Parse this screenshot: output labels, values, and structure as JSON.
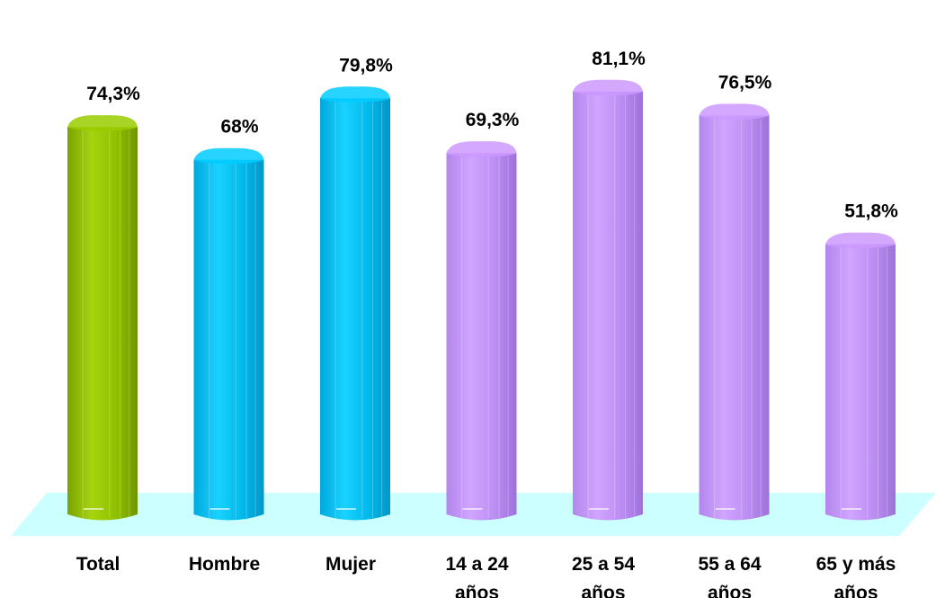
{
  "chart_data": {
    "type": "bar",
    "title": "",
    "xlabel": "",
    "ylabel": "",
    "ylim": [
      0,
      100
    ],
    "grid": false,
    "legend": "none",
    "categories": [
      [
        "Total"
      ],
      [
        "Hombre"
      ],
      [
        "Mujer"
      ],
      [
        "14 a 24",
        "años"
      ],
      [
        "25 a 54",
        "años"
      ],
      [
        "55 a 64",
        "años"
      ],
      [
        "65 y más",
        "años"
      ]
    ],
    "values": [
      74.3,
      68,
      79.8,
      69.3,
      81.1,
      76.5,
      51.8
    ],
    "value_labels": [
      "74,3%",
      "68%",
      "79,8%",
      "69,3%",
      "81,1%",
      "76,5%",
      "51,8%"
    ],
    "colors": {
      "total": "#99cc00",
      "sexo": "#00ccff",
      "edad": "#cc99ff",
      "floor": "#ccffff"
    },
    "bar_color_groups": [
      "total",
      "sexo",
      "sexo",
      "edad",
      "edad",
      "edad",
      "edad"
    ]
  }
}
